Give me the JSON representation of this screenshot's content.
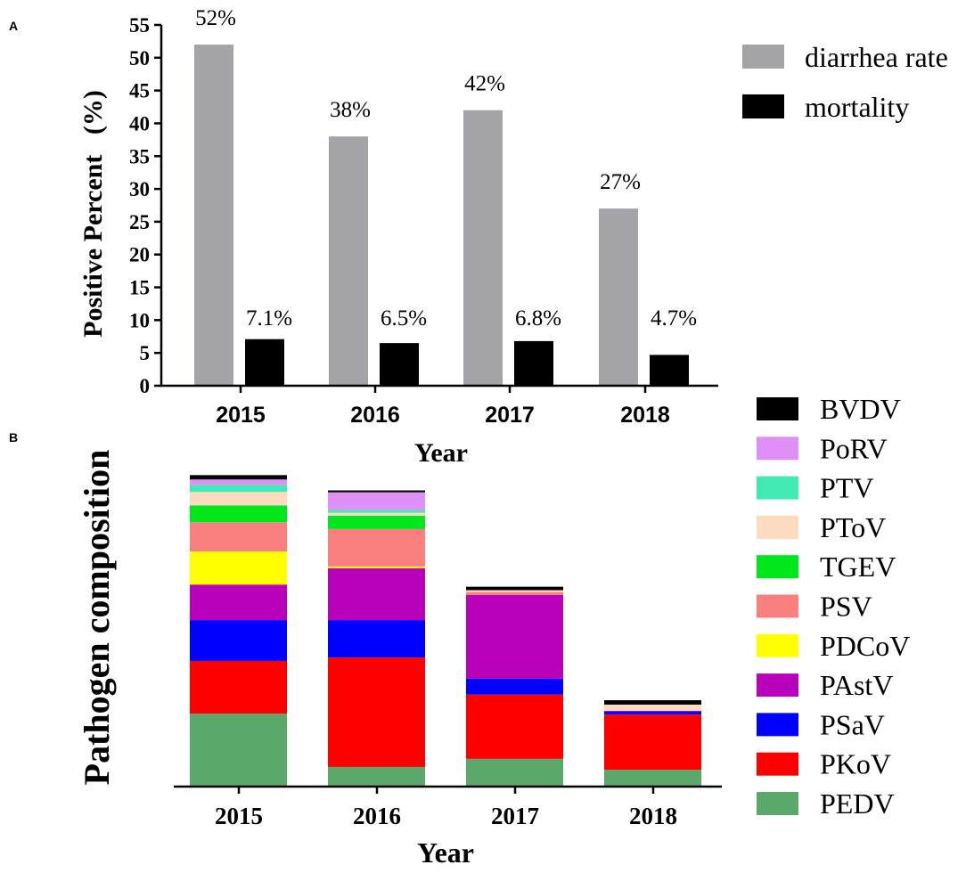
{
  "figure": {
    "panel_a_label": "A",
    "panel_b_label": "B"
  },
  "chart_data": [
    {
      "type": "bar",
      "categories": [
        "2015",
        "2016",
        "2017",
        "2018"
      ],
      "series": [
        {
          "name": "diarrhea rate",
          "values": [
            52,
            38,
            42,
            27
          ],
          "data_labels": [
            "52%",
            "38%",
            "42%",
            "27%"
          ],
          "color": "#a3a3a8"
        },
        {
          "name": "mortality",
          "values": [
            7.1,
            6.5,
            6.8,
            4.7
          ],
          "data_labels": [
            "7.1%",
            "6.5%",
            "6.8%",
            "4.7%"
          ],
          "color": "#000000"
        }
      ],
      "xlabel": "Year",
      "ylabel": "Positive Percent   (%)",
      "ylim": [
        0,
        55
      ],
      "yticks": [
        0,
        5,
        10,
        15,
        20,
        25,
        30,
        35,
        40,
        45,
        50,
        55
      ],
      "grid": false,
      "legend": "top-right"
    },
    {
      "type": "bar",
      "stacked": true,
      "categories": [
        "2015",
        "2016",
        "2017",
        "2018"
      ],
      "series": [
        {
          "name": "PEDV",
          "values": [
            23.4,
            6.3,
            8.9,
            5.4
          ],
          "color": "#5aa96b"
        },
        {
          "name": "PKoV",
          "values": [
            16.9,
            35.1,
            20.6,
            17.7
          ],
          "color": "#ff0000"
        },
        {
          "name": "PSaV",
          "values": [
            13.1,
            12.0,
            5.1,
            0.9
          ],
          "color": "#0000ff"
        },
        {
          "name": "PAstV",
          "values": [
            11.4,
            16.6,
            26.9,
            0.3
          ],
          "color": "#b900bb"
        },
        {
          "name": "PDCoV",
          "values": [
            10.6,
            0.6,
            0,
            0
          ],
          "color": "#ffff00"
        },
        {
          "name": "PSV",
          "values": [
            9.4,
            12.0,
            0.9,
            0
          ],
          "color": "#fa8080"
        },
        {
          "name": "TGEV",
          "values": [
            5.4,
            4.3,
            0,
            0
          ],
          "color": "#00e81c"
        },
        {
          "name": "PToV",
          "values": [
            4.3,
            0.9,
            0.6,
            2.0
          ],
          "color": "#fcdbbf"
        },
        {
          "name": "PTV",
          "values": [
            2.3,
            0.9,
            0,
            0
          ],
          "color": "#40eab2"
        },
        {
          "name": "PoRV",
          "values": [
            1.7,
            5.7,
            0,
            0
          ],
          "color": "#df90f6"
        },
        {
          "name": "BVDV",
          "values": [
            1.4,
            0.6,
            1.1,
            1.4
          ],
          "color": "#000000"
        }
      ],
      "xlabel": "Year",
      "ylabel": "Pathogen composition",
      "ylim": [
        0,
        100
      ],
      "grid": false,
      "legend": "right"
    }
  ]
}
